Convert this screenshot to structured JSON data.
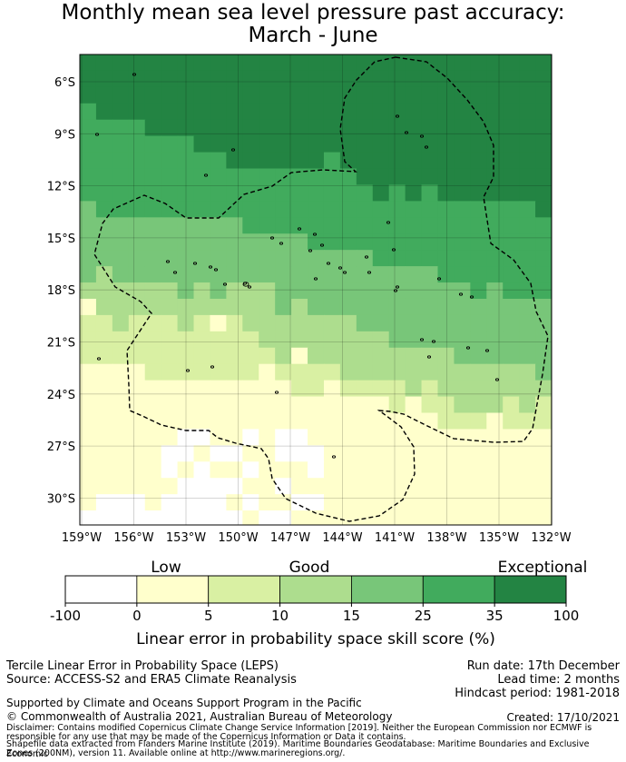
{
  "title": {
    "line1": "Monthly mean sea level pressure past accuracy:",
    "line2": "March - June"
  },
  "map": {
    "lat_ticks": [
      "6°S",
      "9°S",
      "12°S",
      "15°S",
      "18°S",
      "21°S",
      "24°S",
      "27°S",
      "30°S"
    ],
    "lon_ticks": [
      "159°W",
      "156°W",
      "153°W",
      "150°W",
      "147°W",
      "144°W",
      "141°W",
      "138°W",
      "135°W",
      "132°W"
    ],
    "grid": "on",
    "colors": {
      "c0": "#ffffff",
      "c1": "#ffffcc",
      "c2": "#d9f0a3",
      "c3": "#addd8e",
      "c4": "#78c679",
      "c5": "#41ab5d",
      "c6": "#238443"
    }
  },
  "colorbar": {
    "categories": [
      {
        "label": "Low",
        "anchor_value": 0
      },
      {
        "label": "Good",
        "anchor_value": 15
      },
      {
        "label": "Exceptional",
        "anchor_value": 100
      }
    ],
    "ticks": [
      "-100",
      "0",
      "5",
      "10",
      "15",
      "25",
      "35",
      "100"
    ],
    "title": "Linear error in probability space skill score (%)"
  },
  "footer": {
    "left": [
      "Tercile Linear Error in Probability Space (LEPS)",
      "Source: ACCESS-S2 and ERA5 Climate Reanalysis"
    ],
    "right": [
      "Run date: 17th December",
      "Lead time: 2 months",
      "Hindcast period: 1981-2018"
    ],
    "supported": "Supported by Climate and Oceans Support Program in the Pacific",
    "copyright": "© Commonwealth of Australia 2021, Australian Bureau of Meteorology",
    "created": "Created: 17/10/2021",
    "disclaimer": [
      "Disclaimer: Contains modified Copernicus Climate Change Service Information [2019]. Neither the European Commission nor ECMWF is",
      "responsible for any use that may be made of the Copernicus Information or Data it contains.",
      "Shapefile data extracted from Flanders Marine Institute (2019). Maritime Boundaries Geodatabase: Maritime Boundaries and Exclusive Economic",
      "Zones (200NM), version 11. Available online at http://www.marineregions.org/."
    ]
  }
}
